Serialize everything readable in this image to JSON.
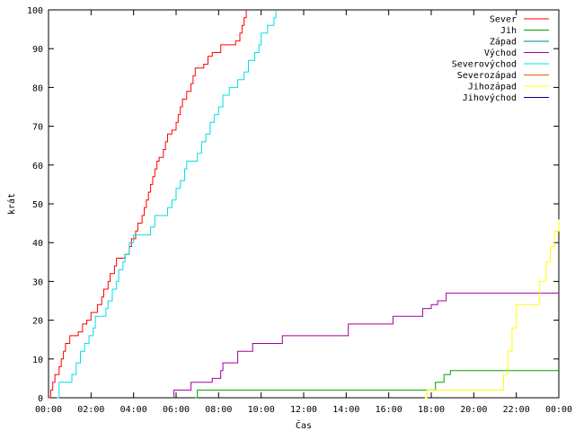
{
  "chart_data": {
    "type": "line",
    "title": "",
    "xlabel": "Čas",
    "ylabel": "krát",
    "xlim": [
      0,
      24
    ],
    "ylim": [
      0,
      100
    ],
    "x_ticks": [
      {
        "value": 0,
        "label": "00:00"
      },
      {
        "value": 2,
        "label": "02:00"
      },
      {
        "value": 4,
        "label": "04:00"
      },
      {
        "value": 6,
        "label": "06:00"
      },
      {
        "value": 8,
        "label": "08:00"
      },
      {
        "value": 10,
        "label": "10:00"
      },
      {
        "value": 12,
        "label": "12:00"
      },
      {
        "value": 14,
        "label": "14:00"
      },
      {
        "value": 16,
        "label": "16:00"
      },
      {
        "value": 18,
        "label": "18:00"
      },
      {
        "value": 20,
        "label": "20:00"
      },
      {
        "value": 22,
        "label": "22:00"
      },
      {
        "value": 24,
        "label": "00:00"
      }
    ],
    "y_ticks": [
      {
        "value": 0,
        "label": "0"
      },
      {
        "value": 10,
        "label": "10"
      },
      {
        "value": 20,
        "label": "20"
      },
      {
        "value": 30,
        "label": "30"
      },
      {
        "value": 40,
        "label": "40"
      },
      {
        "value": 50,
        "label": "50"
      },
      {
        "value": 60,
        "label": "60"
      },
      {
        "value": 70,
        "label": "70"
      },
      {
        "value": 80,
        "label": "80"
      },
      {
        "value": 90,
        "label": "90"
      },
      {
        "value": 100,
        "label": "100"
      }
    ],
    "grid": false,
    "legend_position": "top-right",
    "step": true,
    "series": [
      {
        "name": "Sever",
        "color": "#ff0000",
        "points": [
          [
            0.0,
            0
          ],
          [
            0.1,
            2
          ],
          [
            0.2,
            4
          ],
          [
            0.3,
            6
          ],
          [
            0.5,
            8
          ],
          [
            0.6,
            10
          ],
          [
            0.7,
            12
          ],
          [
            0.8,
            14
          ],
          [
            1.0,
            16
          ],
          [
            1.4,
            17
          ],
          [
            1.6,
            19
          ],
          [
            1.8,
            20
          ],
          [
            2.0,
            22
          ],
          [
            2.3,
            24
          ],
          [
            2.5,
            26
          ],
          [
            2.6,
            28
          ],
          [
            2.8,
            30
          ],
          [
            2.9,
            32
          ],
          [
            3.1,
            34
          ],
          [
            3.2,
            36
          ],
          [
            3.6,
            37
          ],
          [
            3.8,
            39
          ],
          [
            3.9,
            41
          ],
          [
            4.1,
            43
          ],
          [
            4.2,
            45
          ],
          [
            4.4,
            47
          ],
          [
            4.5,
            49
          ],
          [
            4.6,
            51
          ],
          [
            4.7,
            53
          ],
          [
            4.8,
            55
          ],
          [
            4.9,
            57
          ],
          [
            5.0,
            59
          ],
          [
            5.1,
            61
          ],
          [
            5.2,
            62
          ],
          [
            5.4,
            64
          ],
          [
            5.5,
            66
          ],
          [
            5.6,
            68
          ],
          [
            5.8,
            69
          ],
          [
            6.0,
            71
          ],
          [
            6.1,
            73
          ],
          [
            6.2,
            75
          ],
          [
            6.3,
            77
          ],
          [
            6.5,
            79
          ],
          [
            6.7,
            81
          ],
          [
            6.8,
            83
          ],
          [
            6.9,
            85
          ],
          [
            7.3,
            86
          ],
          [
            7.5,
            88
          ],
          [
            7.7,
            89
          ],
          [
            8.1,
            91
          ],
          [
            8.8,
            92
          ],
          [
            9.0,
            94
          ],
          [
            9.1,
            96
          ],
          [
            9.2,
            98
          ],
          [
            9.3,
            100
          ]
        ]
      },
      {
        "name": "Jih",
        "color": "#00a000",
        "points": [
          [
            6.9,
            0
          ],
          [
            7.0,
            2
          ],
          [
            17.8,
            2
          ],
          [
            18.2,
            4
          ],
          [
            18.6,
            6
          ],
          [
            18.9,
            7
          ],
          [
            24.0,
            7
          ]
        ]
      },
      {
        "name": "Západ",
        "color": "#0080a0",
        "points": []
      },
      {
        "name": "Východ",
        "color": "#a000a0",
        "points": [
          [
            5.9,
            0
          ],
          [
            5.9,
            2
          ],
          [
            6.7,
            4
          ],
          [
            7.7,
            5
          ],
          [
            8.1,
            7
          ],
          [
            8.2,
            9
          ],
          [
            8.9,
            12
          ],
          [
            9.6,
            14
          ],
          [
            11.0,
            16
          ],
          [
            14.1,
            19
          ],
          [
            16.2,
            21
          ],
          [
            17.6,
            23
          ],
          [
            18.0,
            24
          ],
          [
            18.3,
            25
          ],
          [
            18.7,
            27
          ],
          [
            24.0,
            27
          ]
        ]
      },
      {
        "name": "Severovýchod",
        "color": "#00e0e0",
        "points": [
          [
            0.4,
            0
          ],
          [
            0.5,
            4
          ],
          [
            1.1,
            6
          ],
          [
            1.3,
            9
          ],
          [
            1.5,
            12
          ],
          [
            1.7,
            14
          ],
          [
            1.9,
            16
          ],
          [
            2.1,
            18
          ],
          [
            2.2,
            21
          ],
          [
            2.7,
            23
          ],
          [
            2.8,
            25
          ],
          [
            3.0,
            28
          ],
          [
            3.2,
            30
          ],
          [
            3.3,
            33
          ],
          [
            3.5,
            35
          ],
          [
            3.6,
            37
          ],
          [
            3.8,
            40
          ],
          [
            4.0,
            42
          ],
          [
            4.8,
            44
          ],
          [
            5.0,
            47
          ],
          [
            5.6,
            49
          ],
          [
            5.8,
            51
          ],
          [
            6.0,
            54
          ],
          [
            6.2,
            56
          ],
          [
            6.4,
            59
          ],
          [
            6.5,
            61
          ],
          [
            7.0,
            63
          ],
          [
            7.2,
            66
          ],
          [
            7.4,
            68
          ],
          [
            7.6,
            71
          ],
          [
            7.8,
            73
          ],
          [
            8.0,
            75
          ],
          [
            8.2,
            78
          ],
          [
            8.5,
            80
          ],
          [
            8.9,
            82
          ],
          [
            9.2,
            84
          ],
          [
            9.4,
            87
          ],
          [
            9.7,
            89
          ],
          [
            9.9,
            91
          ],
          [
            10.0,
            94
          ],
          [
            10.3,
            96
          ],
          [
            10.6,
            98
          ],
          [
            10.7,
            100
          ]
        ]
      },
      {
        "name": "Severozápad",
        "color": "#e06000",
        "points": []
      },
      {
        "name": "Jihozápad",
        "color": "#ffff00",
        "points": [
          [
            17.7,
            0
          ],
          [
            17.8,
            2
          ],
          [
            21.2,
            2
          ],
          [
            21.4,
            6
          ],
          [
            21.6,
            12
          ],
          [
            21.8,
            18
          ],
          [
            22.0,
            24
          ],
          [
            22.8,
            24
          ],
          [
            23.1,
            30
          ],
          [
            23.4,
            35
          ],
          [
            23.6,
            39
          ],
          [
            23.8,
            43
          ],
          [
            24.0,
            46
          ]
        ]
      },
      {
        "name": "Jihovýchod",
        "color": "#000080",
        "points": []
      }
    ]
  }
}
